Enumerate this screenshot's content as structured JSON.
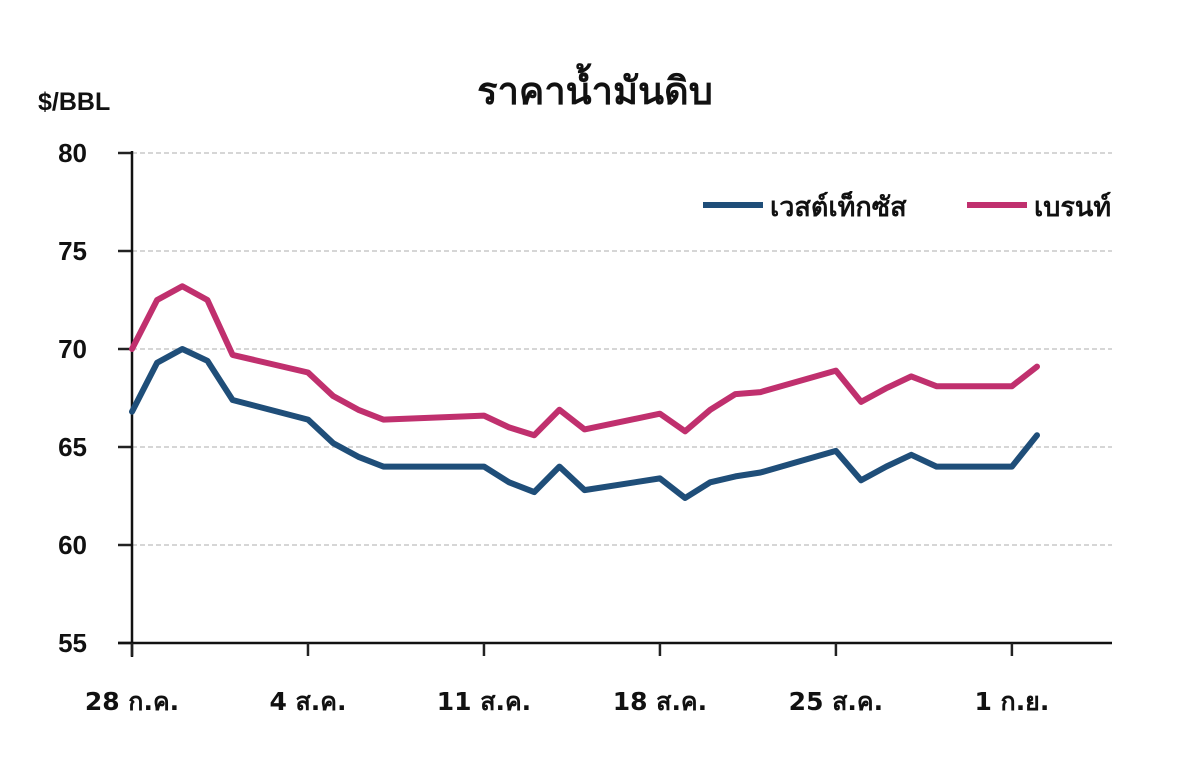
{
  "chart_data": {
    "type": "line",
    "title": "ราคาน้ำมันดิบ",
    "ylabel": "$/BBL",
    "xlabel": "",
    "ylim": [
      55,
      80
    ],
    "yticks": [
      55,
      60,
      65,
      70,
      75,
      80
    ],
    "xtick_labels": [
      "28 ก.ค.",
      "4 ส.ค.",
      "11 ส.ค.",
      "18 ส.ค.",
      "25 ส.ค.",
      "1 ก.ย."
    ],
    "grid": true,
    "legend_position": "upper right",
    "x_day_offsets": [
      0,
      1,
      2,
      3,
      4,
      7,
      8,
      9,
      10,
      14,
      15,
      16,
      17,
      18,
      21,
      22,
      23,
      24,
      25,
      28,
      29,
      30,
      31,
      32,
      35,
      36
    ],
    "series": [
      {
        "name": "เวสต์เท็กซัส",
        "color": "#1f4e79",
        "values": [
          66.8,
          69.3,
          70.0,
          69.4,
          67.4,
          66.4,
          65.2,
          64.5,
          64.0,
          64.0,
          63.2,
          62.7,
          64.0,
          62.8,
          63.4,
          62.4,
          63.2,
          63.5,
          63.7,
          64.8,
          63.3,
          64.0,
          64.6,
          64.0,
          64.0,
          65.6
        ]
      },
      {
        "name": "เบรนท์",
        "color": "#c0306e",
        "values": [
          70.0,
          72.5,
          73.2,
          72.5,
          69.7,
          68.8,
          67.6,
          66.9,
          66.4,
          66.6,
          66.0,
          65.6,
          66.9,
          65.9,
          66.7,
          65.8,
          66.9,
          67.7,
          67.8,
          68.9,
          67.3,
          68.0,
          68.6,
          68.1,
          68.1,
          69.1
        ]
      }
    ]
  },
  "legend": {
    "wti_label": "เวสต์เท็กซัส",
    "brent_label": "เบรนท์"
  }
}
